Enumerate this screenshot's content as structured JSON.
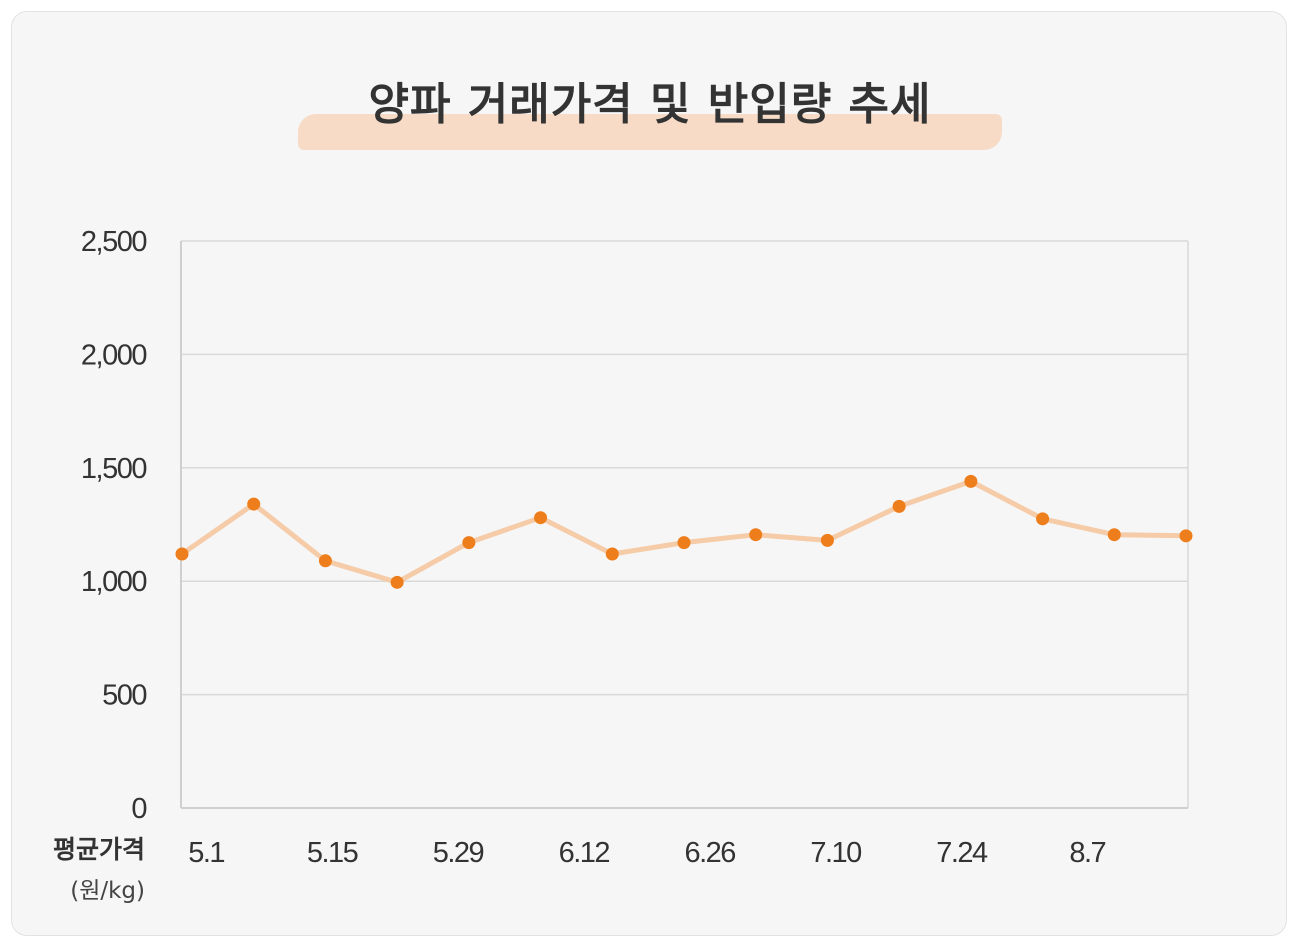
{
  "chart_data": {
    "type": "line",
    "title": "양파 거래가격 및 반입량 추세",
    "ylabel": "평균가격",
    "yunit": "(원/kg)",
    "ylim": [
      0,
      2500
    ],
    "yticks": [
      0,
      500,
      1000,
      1500,
      2000,
      2500
    ],
    "ytick_labels": [
      "0",
      "500",
      "1,000",
      "1,500",
      "2,000",
      "2,500"
    ],
    "xtick_labels": [
      "5.1",
      "5.15",
      "5.29",
      "6.12",
      "6.26",
      "7.10",
      "7.24",
      "8.7"
    ],
    "grid": true,
    "series": [
      {
        "values": [
          1120,
          1340,
          1090,
          995,
          1170,
          1280,
          1120,
          1170,
          1205,
          1180,
          1330,
          1440,
          1275,
          1205,
          1200
        ]
      }
    ],
    "colors": {
      "line": "#f5cba8",
      "marker": "#ee7d1b",
      "grid": "#d9d9d9",
      "axis": "#cfcfcf"
    }
  }
}
